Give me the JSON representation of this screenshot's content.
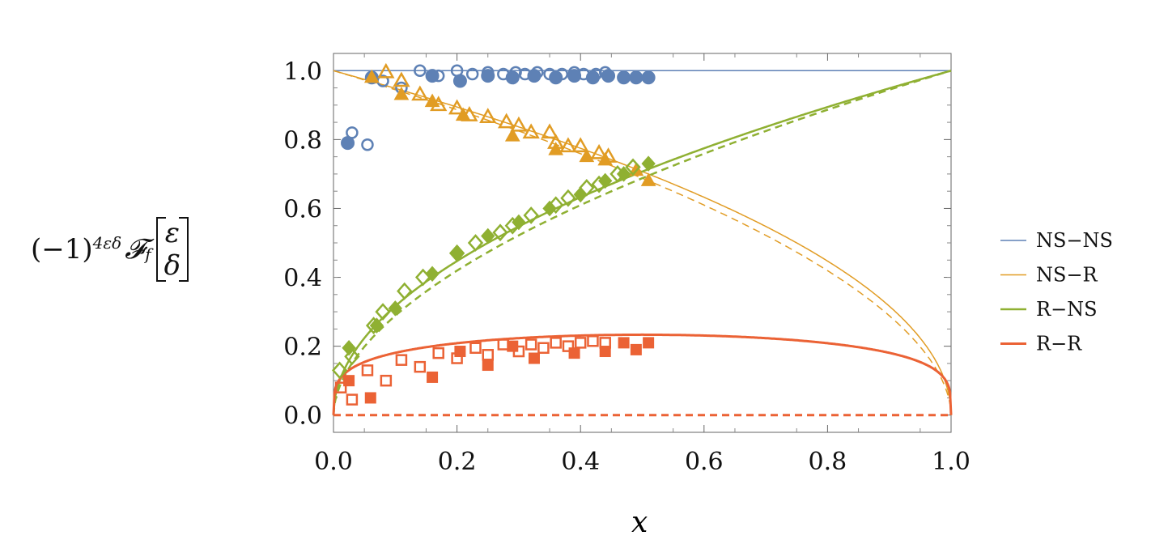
{
  "chart_data": {
    "type": "scatter",
    "title": "",
    "xlabel": "x",
    "ylabel": {
      "prefix": "(−1)",
      "exponent": "4εδ",
      "func": "𝓕",
      "sub": "f",
      "top": "ε",
      "bottom": "δ"
    },
    "xlim": [
      0,
      1
    ],
    "ylim": [
      -0.05,
      1.05
    ],
    "xticks": [
      "0.0",
      "0.2",
      "0.4",
      "0.6",
      "0.8",
      "1.0"
    ],
    "yticks": [
      "0.0",
      "0.2",
      "0.4",
      "0.6",
      "0.8",
      "1.0"
    ],
    "legend_position": "right",
    "series": [
      {
        "name": "NS−NS",
        "color": "#5E81B5",
        "width": 1.5,
        "curve": "nsns",
        "filled_marker": "circle",
        "filled": [
          [
            0.023,
            0.79
          ],
          [
            0.062,
            0.98
          ],
          [
            0.16,
            0.985
          ],
          [
            0.205,
            0.97
          ],
          [
            0.25,
            0.985
          ],
          [
            0.29,
            0.98
          ],
          [
            0.325,
            0.985
          ],
          [
            0.36,
            0.98
          ],
          [
            0.39,
            0.985
          ],
          [
            0.42,
            0.98
          ],
          [
            0.445,
            0.985
          ],
          [
            0.47,
            0.98
          ],
          [
            0.49,
            0.98
          ],
          [
            0.51,
            0.98
          ]
        ],
        "open": [
          [
            0.03,
            0.82
          ],
          [
            0.055,
            0.785
          ],
          [
            0.08,
            0.97
          ],
          [
            0.11,
            0.95
          ],
          [
            0.14,
            1.0
          ],
          [
            0.17,
            0.985
          ],
          [
            0.2,
            1.0
          ],
          [
            0.225,
            0.99
          ],
          [
            0.25,
            0.995
          ],
          [
            0.275,
            0.99
          ],
          [
            0.295,
            0.995
          ],
          [
            0.31,
            0.99
          ],
          [
            0.33,
            0.995
          ],
          [
            0.35,
            0.99
          ],
          [
            0.37,
            0.99
          ],
          [
            0.39,
            0.995
          ],
          [
            0.405,
            0.99
          ],
          [
            0.425,
            0.99
          ],
          [
            0.44,
            0.995
          ]
        ]
      },
      {
        "name": "NS−R",
        "color": "#E19C24",
        "width": 1.5,
        "curve": "nsr",
        "filled_marker": "triangle",
        "filled": [
          [
            0.062,
            0.98
          ],
          [
            0.11,
            0.93
          ],
          [
            0.16,
            0.91
          ],
          [
            0.21,
            0.87
          ],
          [
            0.29,
            0.81
          ],
          [
            0.36,
            0.77
          ],
          [
            0.41,
            0.75
          ],
          [
            0.44,
            0.74
          ],
          [
            0.49,
            0.71
          ],
          [
            0.51,
            0.68
          ]
        ],
        "open": [
          [
            0.085,
            0.995
          ],
          [
            0.11,
            0.97
          ],
          [
            0.14,
            0.93
          ],
          [
            0.17,
            0.9
          ],
          [
            0.2,
            0.89
          ],
          [
            0.22,
            0.87
          ],
          [
            0.25,
            0.865
          ],
          [
            0.28,
            0.85
          ],
          [
            0.3,
            0.84
          ],
          [
            0.32,
            0.82
          ],
          [
            0.35,
            0.82
          ],
          [
            0.36,
            0.79
          ],
          [
            0.38,
            0.78
          ],
          [
            0.4,
            0.78
          ],
          [
            0.43,
            0.76
          ],
          [
            0.445,
            0.75
          ]
        ]
      },
      {
        "name": "R−NS",
        "color": "#8FB032",
        "width": 2.5,
        "curve": "rns",
        "filled_marker": "diamond",
        "filled": [
          [
            0.025,
            0.195
          ],
          [
            0.07,
            0.26
          ],
          [
            0.1,
            0.31
          ],
          [
            0.16,
            0.41
          ],
          [
            0.2,
            0.47
          ],
          [
            0.25,
            0.52
          ],
          [
            0.3,
            0.56
          ],
          [
            0.35,
            0.6
          ],
          [
            0.4,
            0.64
          ],
          [
            0.44,
            0.68
          ],
          [
            0.47,
            0.7
          ],
          [
            0.51,
            0.73
          ]
        ],
        "open": [
          [
            0.01,
            0.13
          ],
          [
            0.03,
            0.17
          ],
          [
            0.065,
            0.26
          ],
          [
            0.08,
            0.3
          ],
          [
            0.115,
            0.36
          ],
          [
            0.145,
            0.4
          ],
          [
            0.2,
            0.47
          ],
          [
            0.23,
            0.5
          ],
          [
            0.27,
            0.53
          ],
          [
            0.29,
            0.55
          ],
          [
            0.32,
            0.58
          ],
          [
            0.36,
            0.61
          ],
          [
            0.38,
            0.63
          ],
          [
            0.41,
            0.66
          ],
          [
            0.43,
            0.67
          ],
          [
            0.46,
            0.7
          ],
          [
            0.485,
            0.72
          ]
        ]
      },
      {
        "name": "R−R",
        "color": "#EB6235",
        "width": 3,
        "curve": "rr",
        "filled_marker": "square",
        "filled": [
          [
            0.025,
            0.1
          ],
          [
            0.06,
            0.05
          ],
          [
            0.16,
            0.11
          ],
          [
            0.205,
            0.185
          ],
          [
            0.25,
            0.145
          ],
          [
            0.29,
            0.2
          ],
          [
            0.325,
            0.165
          ],
          [
            0.39,
            0.18
          ],
          [
            0.44,
            0.185
          ],
          [
            0.47,
            0.21
          ],
          [
            0.49,
            0.19
          ],
          [
            0.51,
            0.21
          ]
        ],
        "open": [
          [
            0.012,
            0.08
          ],
          [
            0.03,
            0.045
          ],
          [
            0.055,
            0.13
          ],
          [
            0.085,
            0.1
          ],
          [
            0.11,
            0.16
          ],
          [
            0.14,
            0.14
          ],
          [
            0.17,
            0.18
          ],
          [
            0.2,
            0.165
          ],
          [
            0.23,
            0.195
          ],
          [
            0.25,
            0.175
          ],
          [
            0.275,
            0.205
          ],
          [
            0.3,
            0.185
          ],
          [
            0.32,
            0.205
          ],
          [
            0.34,
            0.195
          ],
          [
            0.36,
            0.21
          ],
          [
            0.38,
            0.2
          ],
          [
            0.4,
            0.21
          ],
          [
            0.42,
            0.215
          ],
          [
            0.44,
            0.21
          ]
        ]
      }
    ]
  }
}
